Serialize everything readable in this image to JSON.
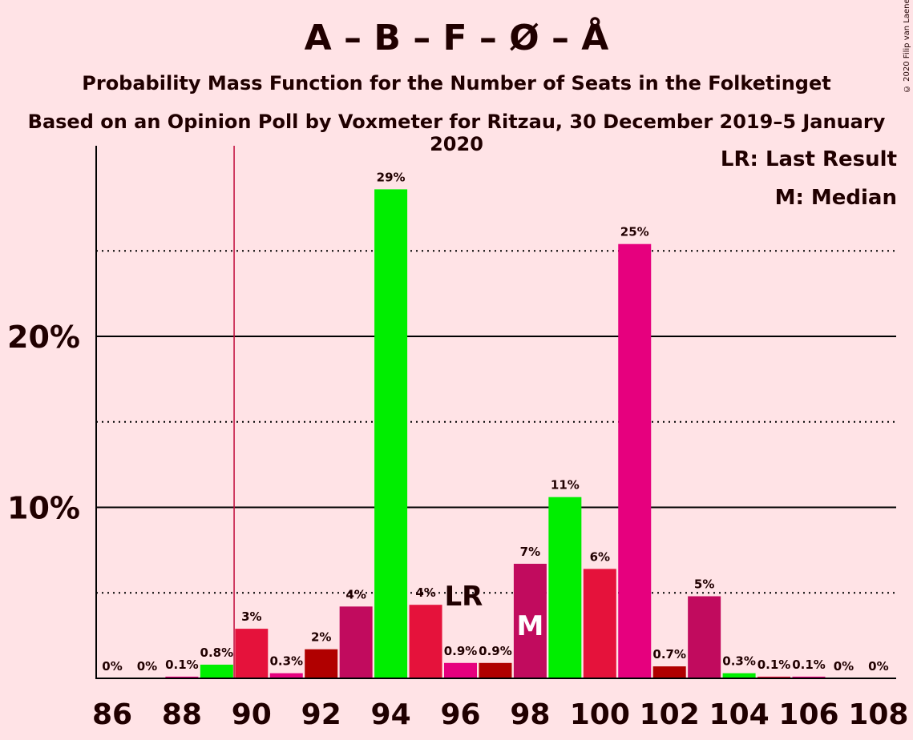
{
  "title": "A – B – F – Ø – Å",
  "subtitle_1": "Probability Mass Function for the Number of Seats in the Folketinget",
  "subtitle_2": "Based on an Opinion Poll by Voxmeter for Ritzau, 30 December 2019–5 January 2020",
  "copyright": "© 2020 Filip van Laenen",
  "legend": {
    "last_result": "LR: Last Result",
    "median": "M: Median"
  },
  "chart_data": {
    "type": "bar",
    "x": [
      86,
      87,
      88,
      89,
      90,
      91,
      92,
      93,
      94,
      95,
      96,
      97,
      98,
      99,
      100,
      101,
      102,
      103,
      104,
      105,
      106,
      107,
      108
    ],
    "values": [
      0,
      0,
      0.1,
      0.8,
      2.9,
      0.3,
      1.7,
      4.2,
      28.6,
      4.3,
      0.9,
      0.9,
      6.7,
      10.6,
      6.4,
      25.4,
      0.7,
      4.8,
      0.3,
      0.1,
      0.1,
      0,
      0
    ],
    "data_labels": [
      "0%",
      "0%",
      "0.1%",
      "0.8%",
      "3%",
      "0.3%",
      "2%",
      "4%",
      "29%",
      "4%",
      "0.9%",
      "0.9%",
      "7%",
      "11%",
      "6%",
      "25%",
      "0.7%",
      "5%",
      "0.3%",
      "0.1%",
      "0.1%",
      "0%",
      "0%"
    ],
    "colors": [
      "#E6007E",
      "#C10B5E",
      "#E6007E",
      "#00EE00",
      "#E5123B",
      "#E6007E",
      "#B00000",
      "#C10B5E",
      "#00EE00",
      "#E5123B",
      "#E6007E",
      "#B00000",
      "#C10B5E",
      "#00EE00",
      "#E5123B",
      "#E6007E",
      "#B00000",
      "#C10B5E",
      "#00EE00",
      "#E5123B",
      "#E6007E",
      "#B00000",
      "#C10B5E"
    ],
    "xticks": [
      86,
      88,
      90,
      92,
      94,
      96,
      98,
      100,
      102,
      104,
      106,
      108
    ],
    "xtick_labels": [
      "86",
      "88",
      "90",
      "92",
      "94",
      "96",
      "98",
      "100",
      "102",
      "104",
      "106",
      "108"
    ],
    "yticks": [
      10,
      20
    ],
    "ytick_labels": [
      "10%",
      "20%"
    ],
    "dotted_gridlines": [
      5,
      15,
      25
    ],
    "ylim": [
      0,
      31
    ],
    "last_result_seat": 89.5,
    "last_result_label_seat": 96,
    "last_result_label": "LR",
    "median_seat": 98,
    "median_label": "M"
  }
}
